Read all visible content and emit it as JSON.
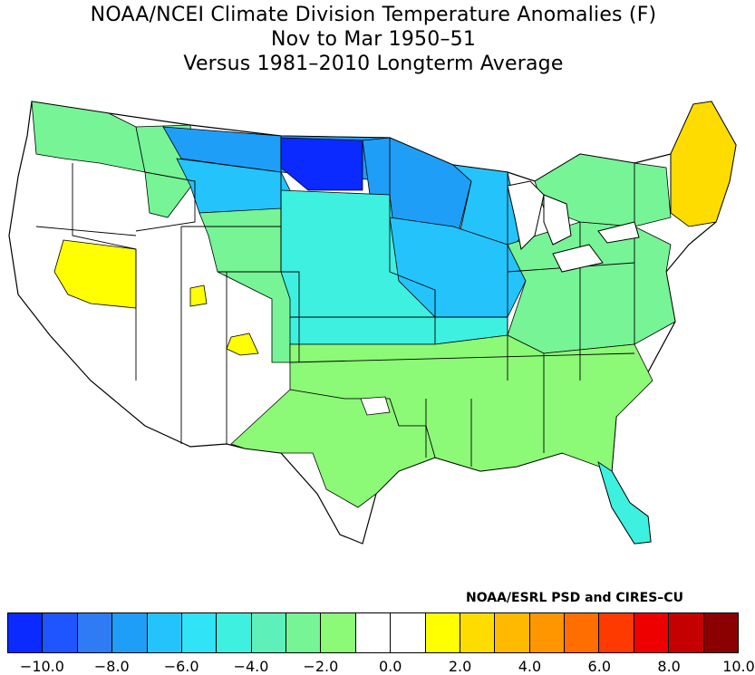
{
  "title": {
    "line1": "NOAA/NCEI Climate Division Temperature Anomalies (F)",
    "line2": "Nov to Mar 1950–51",
    "line3": "Versus 1981–2010 Longterm Average"
  },
  "credit": "NOAA/ESRL PSD and CIRES–CU",
  "colorbar": {
    "colors": [
      "#0a2aff",
      "#1f55ff",
      "#2e7bf4",
      "#1f9ef7",
      "#25c3fb",
      "#31e3f7",
      "#3ef0e0",
      "#5ef0b9",
      "#76f496",
      "#8cf977",
      "#ffffff",
      "#ffffff",
      "#ffff00",
      "#ffdc00",
      "#ffba00",
      "#ff9600",
      "#ff6e00",
      "#ff3a00",
      "#ee0000",
      "#c40000",
      "#8b0000"
    ],
    "tick_labels": [
      "−10.0",
      "−8.0",
      "−6.0",
      "−4.0",
      "−2.0",
      "0.0",
      "2.0",
      "4.0",
      "6.0",
      "8.0",
      "10.0"
    ],
    "range": [
      -11.0,
      11.0
    ],
    "step": 1.0
  },
  "map_regions": {
    "north_plains_cold": "#0a2aff",
    "upper_midwest": "#1f9ef7",
    "great_lakes": "#25c3fb",
    "central_plains": "#3ef0e0",
    "southern": "#76f496",
    "southwest": "#8cf977",
    "new_england_warm": "#ffdc00",
    "great_basin_warm": "#ffff00",
    "near_normal": "#ffffff"
  }
}
